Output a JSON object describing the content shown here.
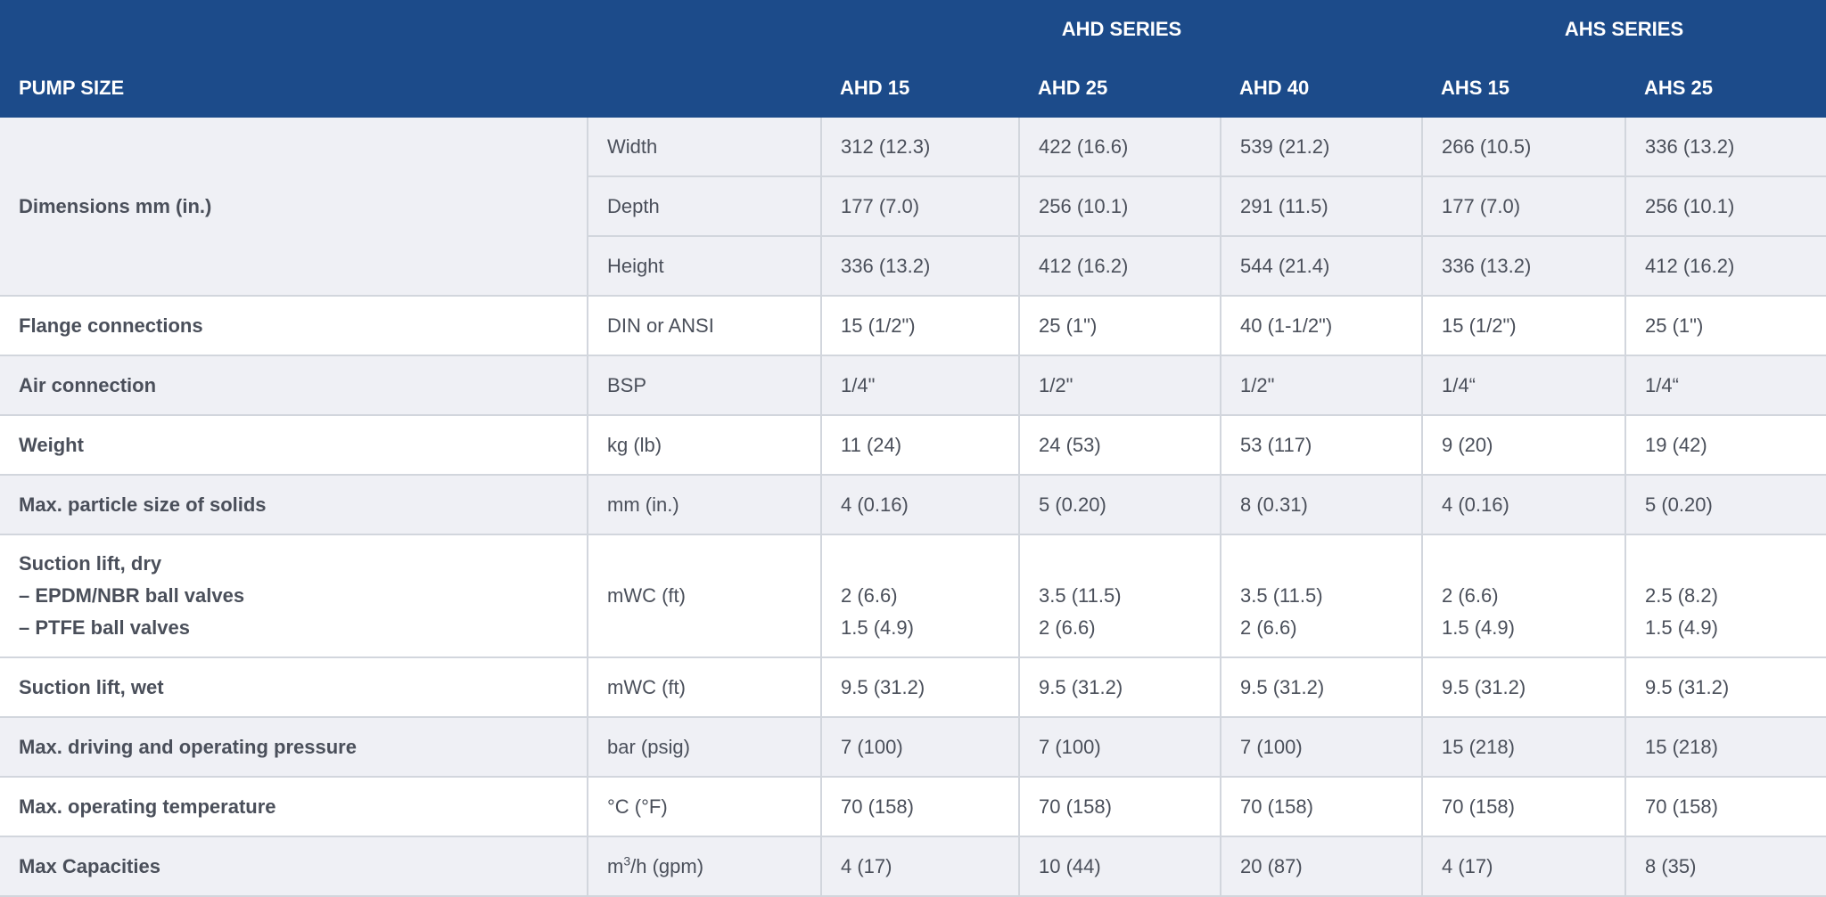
{
  "header": {
    "series": [
      {
        "name": "AHD SERIES"
      },
      {
        "name": "AHS SERIES"
      }
    ],
    "pump_size_label": "PUMP SIZE",
    "models": [
      "AHD 15",
      "AHD 25",
      "AHD 40",
      "AHS 15",
      "AHS 25"
    ]
  },
  "rows": {
    "dimensions": {
      "label": "Dimensions mm (in.)",
      "width": {
        "unit": "Width",
        "values": [
          "312 (12.3)",
          "422 (16.6)",
          "539 (21.2)",
          "266 (10.5)",
          "336 (13.2)"
        ]
      },
      "depth": {
        "unit": "Depth",
        "values": [
          "177 (7.0)",
          "256 (10.1)",
          "291 (11.5)",
          "177 (7.0)",
          "256 (10.1)"
        ]
      },
      "height": {
        "unit": "Height",
        "values": [
          "336 (13.2)",
          "412 (16.2)",
          "544 (21.4)",
          "336 (13.2)",
          "412 (16.2)"
        ]
      }
    },
    "flange": {
      "label": "Flange connections",
      "unit": "DIN or ANSI",
      "values": [
        "15 (1/2\")",
        "25 (1\")",
        "40 (1-1/2\")",
        "15 (1/2\")",
        "25 (1\")"
      ]
    },
    "air": {
      "label": "Air connection",
      "unit": "BSP",
      "values": [
        "1/4\"",
        "1/2\"",
        "1/2\"",
        "1/4“",
        "1/4“"
      ]
    },
    "weight": {
      "label": "Weight",
      "unit": "kg (lb)",
      "values": [
        "11 (24)",
        "24 (53)",
        "53 (117)",
        "9 (20)",
        "19 (42)"
      ]
    },
    "particle": {
      "label": "Max. particle size of solids",
      "unit": "mm (in.)",
      "values": [
        "4 (0.16)",
        "5 (0.20)",
        "8 (0.31)",
        "4 (0.16)",
        "5 (0.20)"
      ]
    },
    "suction_dry": {
      "label_lines": [
        "Suction lift, dry",
        "– EPDM/NBR ball valves",
        "– PTFE ball valves"
      ],
      "unit": "mWC (ft)",
      "epdm_values": [
        "2 (6.6)",
        "3.5 (11.5)",
        "3.5 (11.5)",
        "2 (6.6)",
        "2.5 (8.2)"
      ],
      "ptfe_values": [
        "1.5 (4.9)",
        "2 (6.6)",
        "2 (6.6)",
        "1.5 (4.9)",
        "1.5 (4.9)"
      ]
    },
    "suction_wet": {
      "label": "Suction lift, wet",
      "unit": "mWC (ft)",
      "values": [
        "9.5 (31.2)",
        "9.5 (31.2)",
        "9.5 (31.2)",
        "9.5 (31.2)",
        "9.5 (31.2)"
      ]
    },
    "pressure": {
      "label": "Max. driving and operating pressure",
      "unit": "bar (psig)",
      "values": [
        "7 (100)",
        "7 (100)",
        "7 (100)",
        "15 (218)",
        "15 (218)"
      ]
    },
    "temperature": {
      "label": "Max. operating temperature",
      "unit": "°C (°F)",
      "values": [
        "70 (158)",
        "70 (158)",
        "70 (158)",
        "70 (158)",
        "70 (158)"
      ]
    },
    "capacity": {
      "label": "Max Capacities",
      "unit_prefix": "m",
      "unit_sup": "3",
      "unit_suffix": "/h (gpm)",
      "values": [
        "4 (17)",
        "10 (44)",
        "20 (87)",
        "4 (17)",
        "8 (35)"
      ]
    }
  },
  "colors": {
    "header_bg": "#1c4b8a",
    "row_shade": "#eff0f5",
    "border": "#d2d6dd",
    "text": "#4a4f5a"
  }
}
